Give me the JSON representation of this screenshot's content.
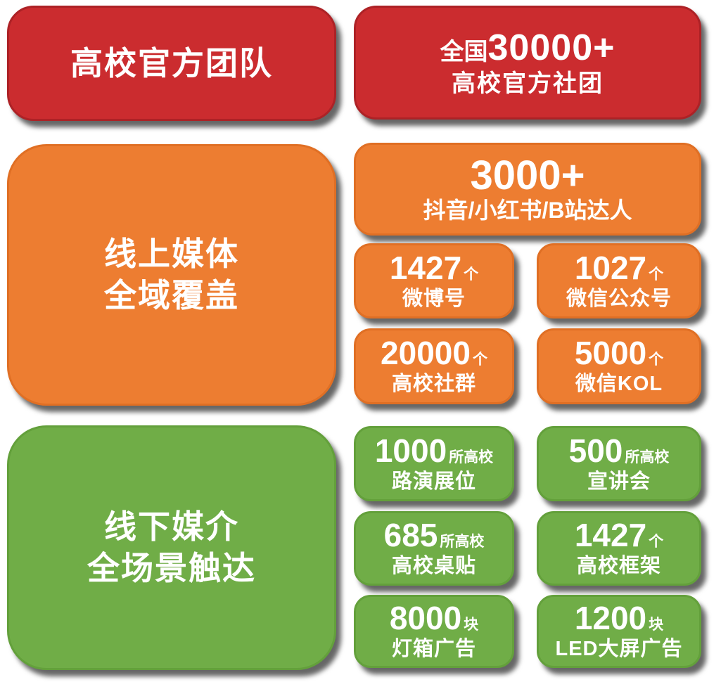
{
  "page": {
    "background": "#ffffff",
    "text_color": "#ffffff"
  },
  "colors": {
    "red": "#CB2C2F",
    "orange": "#ED7D31",
    "green": "#70AD47"
  },
  "sections": [
    {
      "id": "official-team",
      "color": "#CB2C2F",
      "left_label": "高校官方团队",
      "right": {
        "prefix": "全国",
        "number": "30000+",
        "label": "高校官方社团"
      }
    },
    {
      "id": "online-media",
      "color": "#ED7D31",
      "left_label_line1": "线上媒体",
      "left_label_line2": "全域覆盖",
      "feature": {
        "number": "3000+",
        "label": "抖音/小红书/B站达人"
      },
      "stats": [
        {
          "number": "1427",
          "unit": "个",
          "label": "微博号"
        },
        {
          "number": "1027",
          "ununit": "",
          "unit": "个",
          "label": "微信公众号"
        },
        {
          "number": "20000",
          "unit": "个",
          "label": "高校社群"
        },
        {
          "number": "5000",
          "unit": "个",
          "label": "微信KOL"
        }
      ]
    },
    {
      "id": "offline-media",
      "color": "#70AD47",
      "left_label_line1": "线下媒介",
      "left_label_line2": "全场景触达",
      "stats": [
        {
          "number": "1000",
          "unit": "所高校",
          "label": "路演展位"
        },
        {
          "number": "500",
          "unit": "所高校",
          "label": "宣讲会"
        },
        {
          "number": "685",
          "unit": "所高校",
          "label": "高校桌贴"
        },
        {
          "number": "1427",
          "unit": "个",
          "label": "高校框架"
        },
        {
          "number": "8000",
          "unit": "块",
          "label": "灯箱广告"
        },
        {
          "number": "1200",
          "unit": "块",
          "label": "LED大屏广告"
        }
      ]
    }
  ]
}
